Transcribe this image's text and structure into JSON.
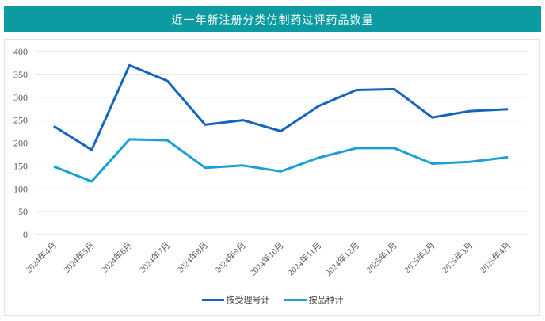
{
  "header": {
    "title": "近一年新注册分类仿制药过评药品数量"
  },
  "chart_data": {
    "type": "line",
    "title": "近一年新注册分类仿制药过评药品数量",
    "xlabel": "",
    "ylabel": "",
    "ylim": [
      0,
      400
    ],
    "yticks": [
      0,
      50,
      100,
      150,
      200,
      250,
      300,
      350,
      400
    ],
    "grid": true,
    "legend_position": "bottom",
    "categories": [
      "2024年4月",
      "2024年5月",
      "2024年6月",
      "2024年7月",
      "2024年8月",
      "2024年9月",
      "2024年10月",
      "2024年11月",
      "2024年12月",
      "2025年1月",
      "2025年2月",
      "2025年3月",
      "2025年4月"
    ],
    "series": [
      {
        "name": "按受理号计",
        "color": "#1565c0",
        "values": [
          237,
          185,
          370,
          336,
          240,
          250,
          226,
          281,
          316,
          318,
          256,
          270,
          274
        ]
      },
      {
        "name": "按品种计",
        "color": "#1aa0d8",
        "values": [
          149,
          116,
          208,
          206,
          146,
          151,
          138,
          168,
          189,
          189,
          155,
          159,
          169
        ]
      }
    ]
  },
  "legend": {
    "items": [
      {
        "label": "按受理号计",
        "color": "#1565c0"
      },
      {
        "label": "按品种计",
        "color": "#1aa0d8"
      }
    ]
  }
}
